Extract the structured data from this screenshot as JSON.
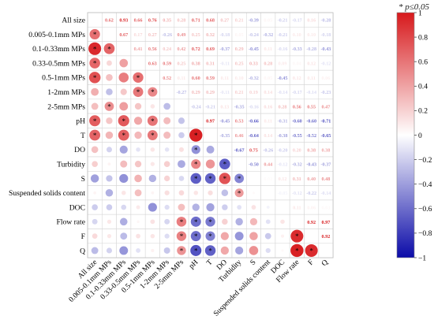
{
  "note": "* p≤0.05",
  "chart_data": {
    "type": "heatmap",
    "subtype": "correlation-matrix",
    "lower_triangle": "circles (size and color = correlation)",
    "upper_triangle": "numeric correlation coefficients",
    "variables": [
      "All size",
      "0.005-0.1mm MPs",
      "0.1-0.33mm MPs",
      "0.33-0.5mm MPs",
      "0.5-1mm MPs",
      "1-2mm MPs",
      "2-5mm MPs",
      "pH",
      "T",
      "DO",
      "Turbidity",
      "S",
      "Suspended solids content",
      "DOC",
      "Flow rate",
      "F",
      "Q"
    ],
    "matrix": [
      [
        1,
        0.62,
        0.93,
        0.66,
        0.76,
        0.35,
        0.28,
        0.71,
        0.68,
        0.27,
        0.21,
        -0.39,
        0.05,
        -0.21,
        -0.17,
        0.16,
        -0.28
      ],
      [
        0.62,
        1,
        0.67,
        0.17,
        0.27,
        -0.26,
        0.49,
        0.25,
        0.32,
        -0.18,
        0.05,
        -0.24,
        -0.32,
        -0.21,
        0.1,
        0.1,
        -0.18
      ],
      [
        0.93,
        0.67,
        1,
        0.41,
        0.56,
        0.24,
        0.42,
        0.72,
        0.69,
        -0.37,
        0.29,
        -0.45,
        0.11,
        -0.16,
        -0.33,
        -0.28,
        -0.43
      ],
      [
        0.66,
        0.17,
        0.41,
        1,
        0.63,
        0.59,
        0.25,
        0.38,
        0.31,
        -0.11,
        0.25,
        0.33,
        0.28,
        0.09,
        0.04,
        0.12,
        -0.12
      ],
      [
        0.76,
        0.27,
        0.56,
        0.63,
        1,
        0.52,
        0.11,
        0.6,
        0.59,
        0.11,
        0.1,
        -0.32,
        0.05,
        -0.45,
        0.12,
        0.11,
        0.06
      ],
      [
        0.35,
        -0.26,
        0.24,
        0.59,
        0.52,
        1,
        -0.27,
        0.29,
        0.29,
        -0.11,
        0.21,
        0.19,
        0.14,
        -0.14,
        -0.17,
        -0.14,
        -0.23
      ],
      [
        0.28,
        0.49,
        0.42,
        0.25,
        0.11,
        -0.27,
        1,
        -0.24,
        -0.21,
        0.13,
        -0.35,
        -0.16,
        0.16,
        0.28,
        0.56,
        0.55,
        0.47
      ],
      [
        0.71,
        0.25,
        0.72,
        0.38,
        0.6,
        0.29,
        -0.24,
        1,
        0.97,
        -0.45,
        0.53,
        -0.66,
        0.11,
        -0.31,
        -0.6,
        -0.6,
        -0.71
      ],
      [
        0.68,
        0.32,
        0.69,
        0.31,
        0.59,
        0.29,
        -0.21,
        0.97,
        1,
        -0.35,
        0.46,
        -0.64,
        0.14,
        -0.38,
        -0.55,
        -0.52,
        -0.65
      ],
      [
        0.27,
        -0.18,
        -0.37,
        -0.11,
        0.11,
        -0.11,
        0.13,
        -0.45,
        -0.35,
        1,
        -0.67,
        0.75,
        -0.26,
        -0.2,
        0.2,
        0.38,
        0.38
      ],
      [
        0.21,
        0.05,
        0.29,
        0.25,
        0.1,
        0.21,
        -0.35,
        0.53,
        0.46,
        -0.67,
        1,
        -0.5,
        0.44,
        -0.12,
        -0.32,
        -0.43,
        -0.37
      ],
      [
        -0.39,
        -0.24,
        -0.45,
        0.33,
        -0.32,
        0.19,
        -0.16,
        -0.66,
        -0.64,
        0.75,
        -0.5,
        1,
        0.02,
        0.12,
        0.31,
        0.4,
        0.48
      ],
      [
        0.05,
        -0.32,
        0.11,
        0.28,
        0.05,
        0.14,
        0.16,
        0.11,
        0.14,
        -0.26,
        0.44,
        0.02,
        1,
        -0.05,
        -0.12,
        -0.22,
        -0.14
      ],
      [
        -0.21,
        -0.21,
        -0.16,
        0.09,
        -0.45,
        -0.14,
        0.28,
        -0.31,
        -0.38,
        -0.2,
        -0.12,
        0.12,
        -0.05,
        1,
        0.11,
        0.06,
        0.03
      ],
      [
        -0.17,
        0.1,
        -0.33,
        0.04,
        0.12,
        -0.17,
        0.56,
        -0.6,
        -0.55,
        0.2,
        -0.32,
        0.31,
        -0.12,
        0.11,
        1,
        0.92,
        0.97
      ],
      [
        0.16,
        0.1,
        -0.28,
        0.12,
        0.11,
        -0.14,
        0.55,
        -0.6,
        -0.52,
        0.38,
        -0.43,
        0.4,
        -0.22,
        0.06,
        0.92,
        1,
        0.92
      ],
      [
        -0.28,
        -0.18,
        -0.43,
        -0.12,
        0.06,
        -0.23,
        0.47,
        -0.71,
        -0.65,
        0.38,
        -0.37,
        0.48,
        -0.14,
        0.03,
        0.97,
        0.92,
        1
      ]
    ],
    "significant_lower": [
      [
        1,
        0
      ],
      [
        2,
        0
      ],
      [
        2,
        1
      ],
      [
        3,
        0
      ],
      [
        4,
        0
      ],
      [
        4,
        3
      ],
      [
        5,
        3
      ],
      [
        5,
        4
      ],
      [
        6,
        1
      ],
      [
        7,
        0
      ],
      [
        7,
        2
      ],
      [
        7,
        4
      ],
      [
        8,
        0
      ],
      [
        8,
        2
      ],
      [
        8,
        4
      ],
      [
        8,
        7
      ],
      [
        9,
        7
      ],
      [
        10,
        7
      ],
      [
        10,
        9
      ],
      [
        11,
        7
      ],
      [
        11,
        8
      ],
      [
        11,
        9
      ],
      [
        11,
        10
      ],
      [
        12,
        10
      ],
      [
        14,
        6
      ],
      [
        14,
        7
      ],
      [
        14,
        8
      ],
      [
        15,
        6
      ],
      [
        15,
        7
      ],
      [
        15,
        8
      ],
      [
        15,
        14
      ],
      [
        16,
        6
      ],
      [
        16,
        7
      ],
      [
        16,
        8
      ],
      [
        16,
        14
      ],
      [
        16,
        15
      ]
    ],
    "colorbar": {
      "min": -1,
      "max": 1,
      "ticks": [
        "1",
        "0.8",
        "0.6",
        "0.4",
        "0.2",
        "0",
        "−0.2",
        "−0.4",
        "−0.6",
        "−0.8",
        "−1"
      ]
    },
    "colors": {
      "positive": "#d7191c",
      "neutral": "#ffffff",
      "negative": "#0b0ba8"
    }
  }
}
